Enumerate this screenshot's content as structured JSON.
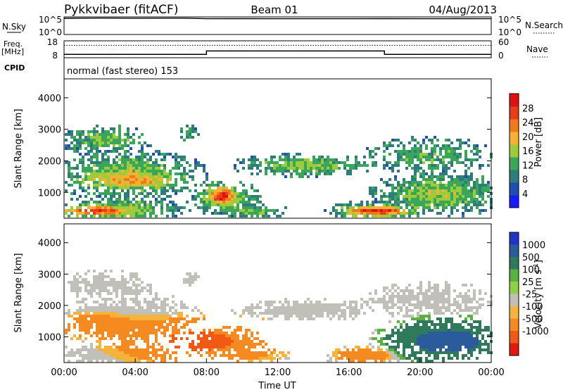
{
  "header": {
    "station": "Pykkvibaer (fitACF)",
    "beam": "Beam 01",
    "date": "04/Aug/2013"
  },
  "nsky_panel": {
    "left_label": "N.Sky",
    "right_label": "N.Search",
    "left_ticks": [
      "10^5",
      "10^0"
    ],
    "right_ticks": [
      "10^5",
      "10^0"
    ]
  },
  "freq_panel": {
    "left_label_line1": "Freq.",
    "left_label_line2": "[MHz]",
    "right_label": "Nave",
    "left_ticks": [
      "18",
      "8"
    ],
    "right_ticks": [
      "60",
      "0"
    ]
  },
  "cpid_panel": {
    "label": "CPID",
    "value": "normal (fast stereo) 153"
  },
  "chart_data": [
    {
      "type": "line",
      "name": "nsky",
      "description": "Number of sky noise / search noise on log scale",
      "x_range_hours": [
        0,
        24
      ],
      "y_scale": "log",
      "ylim": [
        1,
        100000
      ],
      "x": [
        0,
        2,
        4,
        6,
        7,
        8,
        10,
        12,
        14,
        16,
        18,
        20,
        22,
        24
      ],
      "series": [
        {
          "values": [
            40000,
            45000,
            42000,
            44000,
            41000,
            30000,
            31000,
            30000,
            30500,
            30000,
            31000,
            30500,
            31000,
            30000
          ]
        }
      ]
    },
    {
      "type": "line",
      "name": "freq_nave",
      "description": "Transmit frequency (MHz) and number of averages",
      "x_range_hours": [
        0,
        24
      ],
      "ylim_freq": [
        8,
        18
      ],
      "ylim_nave": [
        0,
        60
      ],
      "freq": {
        "x": [
          0,
          8,
          8,
          18,
          18,
          24
        ],
        "values": [
          10,
          10,
          12,
          12,
          10,
          10
        ]
      },
      "nave": {
        "x": [
          0,
          24
        ],
        "values": [
          44,
          44
        ]
      }
    },
    {
      "type": "heatmap",
      "name": "power",
      "xlabel": "",
      "ylabel": "Slant Range [km]",
      "x_range_hours": [
        0,
        24
      ],
      "ylim": [
        180,
        4600
      ],
      "yticks": [
        1000,
        2000,
        3000,
        4000
      ],
      "colorbar": {
        "label": "Power [dB]",
        "ticks": [
          4,
          8,
          12,
          16,
          20,
          24,
          28
        ],
        "colors": [
          "#1a1aff",
          "#1f4fb0",
          "#2e7d7a",
          "#3aa65a",
          "#9ccc3a",
          "#f2b233",
          "#f07a1a",
          "#e83c1a",
          "#e01010"
        ],
        "range": [
          0,
          32
        ]
      }
    },
    {
      "type": "heatmap",
      "name": "velocity",
      "xlabel": "Time UT",
      "ylabel": "Slant Range [km]",
      "x_range_hours": [
        0,
        24
      ],
      "ylim": [
        180,
        4600
      ],
      "yticks": [
        1000,
        2000,
        3000,
        4000
      ],
      "xticks": [
        "00:00",
        "04:00",
        "08:00",
        "12:00",
        "16:00",
        "20:00",
        "00:00"
      ],
      "colorbar": {
        "label": "Velocity [m s",
        "label_sup": "-1",
        "label_end": "]",
        "ticks": [
          "1000",
          "500",
          "100",
          "25",
          "-25",
          "-100",
          "-500",
          "-1000"
        ],
        "colors": [
          "#2233cc",
          "#2a5c9c",
          "#2e7a5a",
          "#5ab040",
          "#8fd04a",
          "#c0c0b8",
          "#f5b33b",
          "#f58a20",
          "#f05a15",
          "#e01a10"
        ]
      }
    }
  ]
}
